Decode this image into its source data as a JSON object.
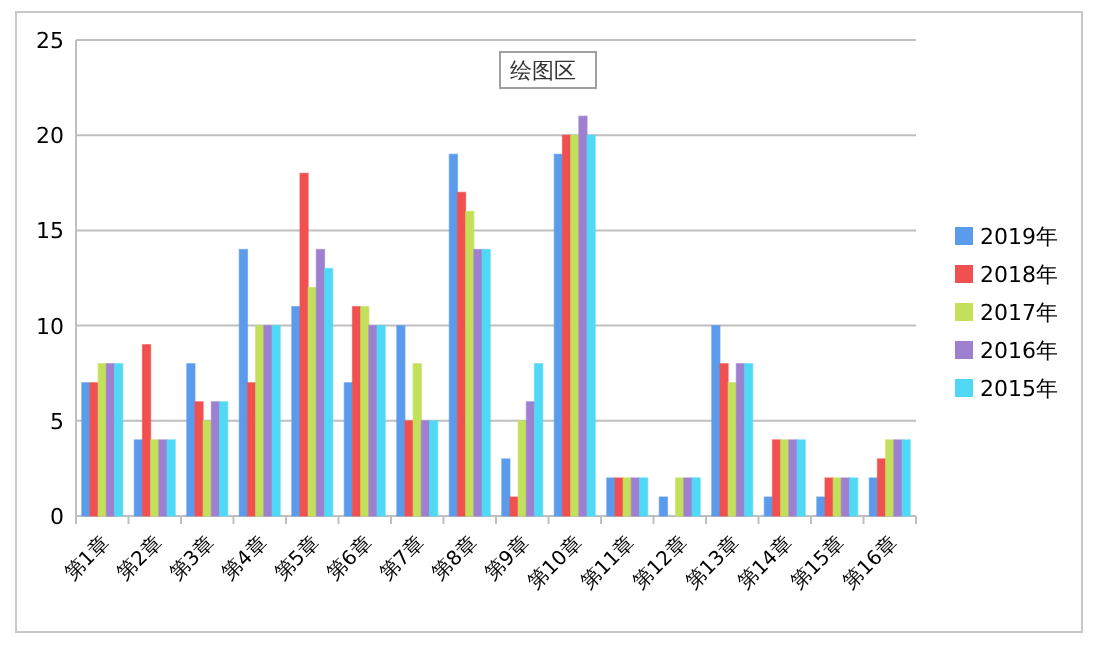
{
  "chart_data": {
    "type": "bar",
    "categories": [
      "第1章",
      "第2章",
      "第3章",
      "第4章",
      "第5章",
      "第6章",
      "第7章",
      "第8章",
      "第9章",
      "第10章",
      "第11章",
      "第12章",
      "第13章",
      "第14章",
      "第15章",
      "第16章"
    ],
    "series": [
      {
        "name": "2019年",
        "color": "#5b9bec",
        "values": [
          7,
          4,
          8,
          14,
          11,
          7,
          10,
          19,
          3,
          19,
          2,
          1,
          10,
          1,
          1,
          2
        ]
      },
      {
        "name": "2018年",
        "color": "#f0504f",
        "values": [
          7,
          9,
          6,
          7,
          18,
          11,
          5,
          17,
          1,
          20,
          2,
          0,
          8,
          4,
          2,
          3
        ]
      },
      {
        "name": "2017年",
        "color": "#c3e05a",
        "values": [
          8,
          4,
          5,
          10,
          12,
          11,
          8,
          16,
          5,
          20,
          2,
          2,
          7,
          4,
          2,
          4
        ]
      },
      {
        "name": "2016年",
        "color": "#9f7fd0",
        "values": [
          8,
          4,
          6,
          10,
          14,
          10,
          5,
          14,
          6,
          21,
          2,
          2,
          8,
          4,
          2,
          4
        ]
      },
      {
        "name": "2015年",
        "color": "#4fd9f5",
        "values": [
          8,
          4,
          6,
          10,
          13,
          10,
          5,
          14,
          8,
          20,
          2,
          2,
          8,
          4,
          2,
          4
        ]
      }
    ],
    "ylim": [
      0,
      25
    ],
    "yticks": [
      0,
      5,
      10,
      15,
      20,
      25
    ],
    "grid": "y",
    "legend": "right",
    "annotations": [
      "绘图区"
    ]
  }
}
